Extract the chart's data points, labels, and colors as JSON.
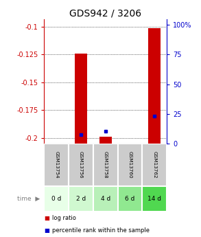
{
  "title": "GDS942 / 3206",
  "samples": [
    "GSM13754",
    "GSM13756",
    "GSM13758",
    "GSM13760",
    "GSM13762"
  ],
  "time_labels": [
    "0 d",
    "2 d",
    "4 d",
    "6 d",
    "14 d"
  ],
  "log_ratio": [
    null,
    -0.124,
    -0.199,
    null,
    -0.101
  ],
  "percentile_rank": [
    null,
    7,
    10,
    null,
    22
  ],
  "ylim_left": [
    -0.205,
    -0.093
  ],
  "ylim_right": [
    0,
    105
  ],
  "yticks_left": [
    -0.2,
    -0.175,
    -0.15,
    -0.125,
    -0.1
  ],
  "yticks_right": [
    0,
    25,
    50,
    75,
    100
  ],
  "bar_color": "#cc0000",
  "dot_color": "#0000cc",
  "bar_width": 0.5,
  "title_fontsize": 10,
  "tick_fontsize": 7,
  "time_colors": [
    "#e8ffe8",
    "#d0f8d0",
    "#b8f0b8",
    "#90e890",
    "#50d850"
  ],
  "sample_bg_color": "#cccccc",
  "grid_color": "#000000",
  "left_axis_color": "#cc0000",
  "right_axis_color": "#0000cc",
  "legend_red_label": "log ratio",
  "legend_blue_label": "percentile rank within the sample"
}
